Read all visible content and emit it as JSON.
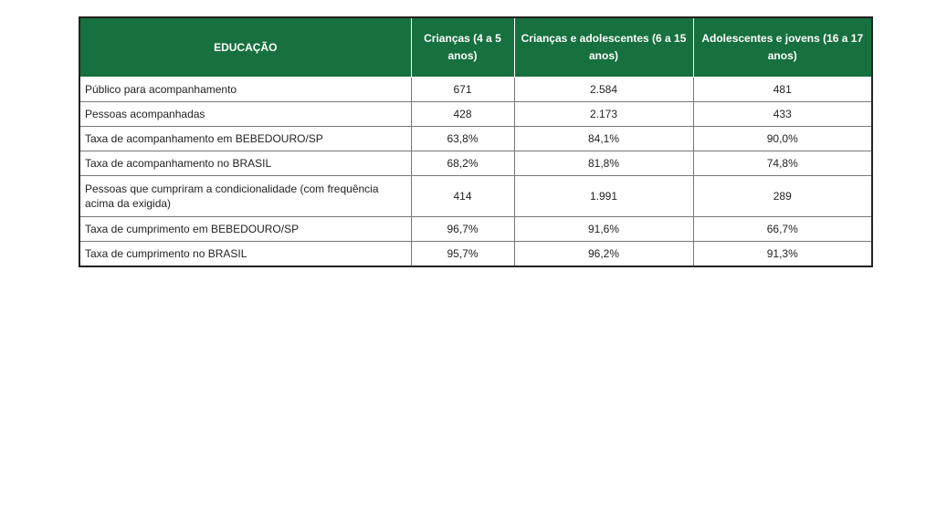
{
  "table": {
    "header": [
      "EDUCAÇÃO",
      "Crianças (4 a 5 anos)",
      "Crianças e adolescentes (6 a 15 anos)",
      "Adolescentes e jovens (16 a 17 anos)"
    ],
    "rows": [
      [
        "Público para acompanhamento",
        "671",
        "2.584",
        "481"
      ],
      [
        "Pessoas acompanhadas",
        "428",
        "2.173",
        "433"
      ],
      [
        "Taxa de acompanhamento em BEBEDOURO/SP",
        "63,8%",
        "84,1%",
        "90,0%"
      ],
      [
        "Taxa de acompanhamento no BRASIL",
        "68,2%",
        "81,8%",
        "74,8%"
      ],
      [
        "Pessoas que cumpriram a condicionalidade (com frequência acima da exigida)",
        "414",
        "1.991",
        "289"
      ],
      [
        "Taxa de cumprimento em BEBEDOURO/SP",
        "96,7%",
        "91,6%",
        "66,7%"
      ],
      [
        "Taxa de cumprimento no BRASIL",
        "95,7%",
        "96,2%",
        "91,3%"
      ]
    ]
  }
}
